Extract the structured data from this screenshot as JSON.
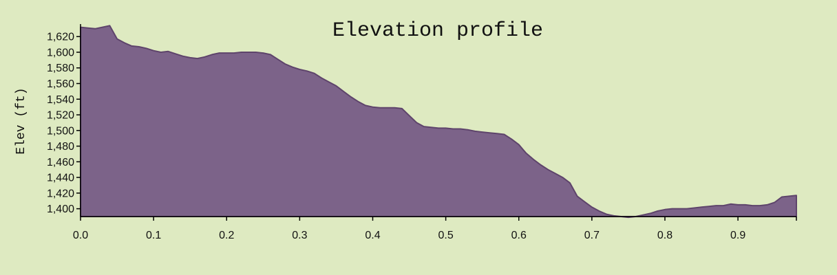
{
  "colors": {
    "background": "#deeac1",
    "area_fill": "#7c6389",
    "area_stroke": "#5e446b",
    "axis": "#000000"
  },
  "chart_data": {
    "type": "area",
    "title": "Elevation profile",
    "xlabel": "",
    "ylabel": "Elev (ft)",
    "xlim": [
      0,
      0.98
    ],
    "ylim": [
      1390,
      1636
    ],
    "grid": false,
    "x_ticks": [
      0.0,
      0.1,
      0.2,
      0.3,
      0.4,
      0.5,
      0.6,
      0.7,
      0.8,
      0.9
    ],
    "x_tick_labels": [
      "0.0",
      "0.1",
      "0.2",
      "0.3",
      "0.4",
      "0.5",
      "0.6",
      "0.7",
      "0.8",
      "0.9"
    ],
    "y_ticks": [
      1400,
      1420,
      1440,
      1460,
      1480,
      1500,
      1520,
      1540,
      1560,
      1580,
      1600,
      1620
    ],
    "y_tick_labels": [
      "1,400",
      "1,420",
      "1,440",
      "1,460",
      "1,480",
      "1,500",
      "1,520",
      "1,540",
      "1,560",
      "1,580",
      "1,600",
      "1,620"
    ],
    "series": [
      {
        "x": [
          0.0,
          0.01,
          0.02,
          0.03,
          0.04,
          0.05,
          0.06,
          0.07,
          0.08,
          0.09,
          0.1,
          0.11,
          0.12,
          0.13,
          0.14,
          0.15,
          0.16,
          0.17,
          0.18,
          0.19,
          0.2,
          0.21,
          0.22,
          0.23,
          0.24,
          0.25,
          0.26,
          0.27,
          0.28,
          0.29,
          0.3,
          0.31,
          0.32,
          0.33,
          0.34,
          0.35,
          0.36,
          0.37,
          0.38,
          0.39,
          0.4,
          0.41,
          0.42,
          0.43,
          0.44,
          0.45,
          0.46,
          0.47,
          0.48,
          0.49,
          0.5,
          0.51,
          0.52,
          0.53,
          0.54,
          0.55,
          0.56,
          0.57,
          0.58,
          0.59,
          0.6,
          0.61,
          0.62,
          0.63,
          0.64,
          0.65,
          0.66,
          0.67,
          0.68,
          0.69,
          0.7,
          0.71,
          0.72,
          0.73,
          0.74,
          0.75,
          0.76,
          0.77,
          0.78,
          0.79,
          0.8,
          0.81,
          0.82,
          0.83,
          0.84,
          0.85,
          0.86,
          0.87,
          0.88,
          0.89,
          0.9,
          0.91,
          0.92,
          0.93,
          0.94,
          0.95,
          0.96,
          0.97,
          0.98
        ],
        "values": [
          1632,
          1631,
          1630,
          1632,
          1634,
          1617,
          1612,
          1608,
          1607,
          1605,
          1602,
          1600,
          1601,
          1598,
          1595,
          1593,
          1592,
          1594,
          1597,
          1599,
          1599,
          1599,
          1600,
          1600,
          1600,
          1599,
          1597,
          1591,
          1585,
          1581,
          1578,
          1576,
          1573,
          1567,
          1562,
          1557,
          1550,
          1543,
          1537,
          1532,
          1530,
          1529,
          1529,
          1529,
          1528,
          1519,
          1510,
          1505,
          1504,
          1503,
          1503,
          1502,
          1502,
          1501,
          1499,
          1498,
          1497,
          1496,
          1495,
          1489,
          1482,
          1471,
          1463,
          1456,
          1450,
          1445,
          1440,
          1433,
          1416,
          1409,
          1402,
          1397,
          1393,
          1391,
          1390,
          1389,
          1390,
          1392,
          1394,
          1397,
          1399,
          1400,
          1400,
          1400,
          1401,
          1402,
          1403,
          1404,
          1404,
          1406,
          1405,
          1405,
          1404,
          1404,
          1405,
          1408,
          1415,
          1416,
          1417
        ]
      }
    ]
  }
}
